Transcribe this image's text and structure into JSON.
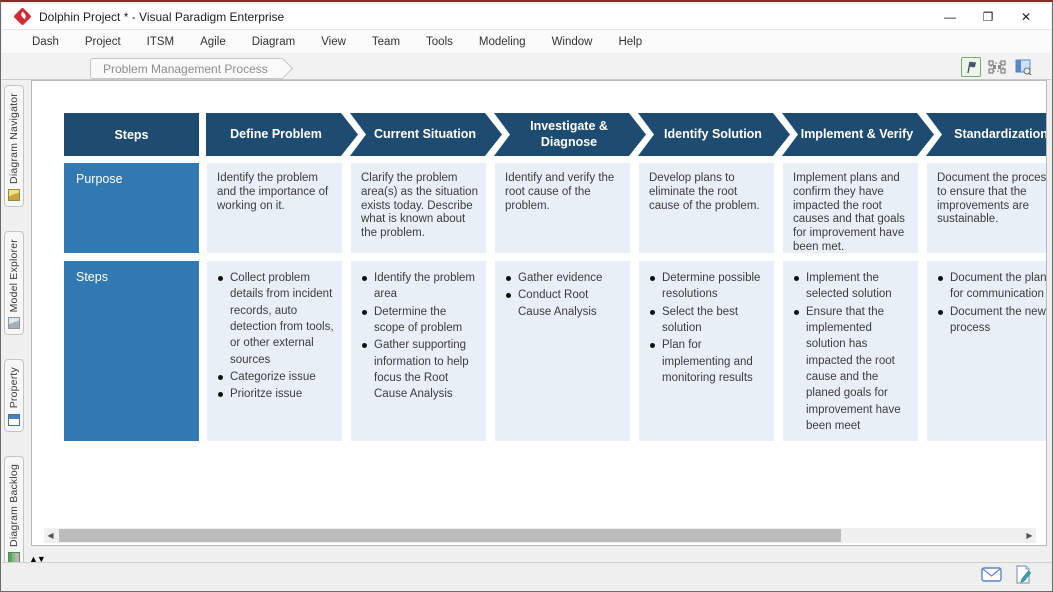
{
  "window": {
    "title": "Dolphin Project * - Visual Paradigm Enterprise",
    "controls": {
      "minimize": "—",
      "maximize": "❐",
      "close": "✕"
    }
  },
  "menu": {
    "items": [
      "Dash",
      "Project",
      "ITSM",
      "Agile",
      "Diagram",
      "View",
      "Team",
      "Tools",
      "Modeling",
      "Window",
      "Help"
    ]
  },
  "breadcrumb": {
    "tab": "Problem Management Process"
  },
  "crumb_toolbar": {
    "icons": [
      "publish-flag-icon",
      "fit-selection-icon",
      "panel-layout-icon"
    ]
  },
  "sidebar": {
    "tabs": [
      {
        "label": "Diagram Navigator",
        "icon": "diagram-navigator-icon"
      },
      {
        "label": "Model Explorer",
        "icon": "model-explorer-icon"
      },
      {
        "label": "Property",
        "icon": "property-icon"
      },
      {
        "label": "Diagram Backlog",
        "icon": "diagram-backlog-icon"
      }
    ]
  },
  "diagram": {
    "row_labels": {
      "header": "Steps",
      "purpose": "Purpose",
      "steps": "Steps"
    },
    "colors": {
      "header_bg": "#1e4c70",
      "row_label_bg": "#3179b0",
      "cell_bg": "#e9eff7"
    },
    "columns": [
      {
        "header": "Define Problem",
        "purpose": "Identify the problem and the importance of working on it.",
        "steps": [
          "Collect problem details from incident records, auto detection from tools, or other external sources",
          "Categorize issue",
          "Prioritze issue"
        ]
      },
      {
        "header": "Current Situation",
        "purpose": "Clarify the problem area(s) as the situation exists today. Describe what is known about the problem.",
        "steps": [
          "Identify the problem area",
          "Determine the scope of problem",
          "Gather supporting information to help focus the Root Cause Analysis"
        ]
      },
      {
        "header": "Investigate & Diagnose",
        "purpose": "Identify and verify the root cause of the problem.",
        "steps": [
          "Gather evidence",
          "Conduct Root Cause Analysis"
        ]
      },
      {
        "header": "Identify Solution",
        "purpose": "Develop plans to eliminate the root cause of the problem.",
        "steps": [
          "Determine possible resolutions",
          "Select the best solution",
          "Plan for implementing and monitoring results"
        ]
      },
      {
        "header": "Implement & Verify",
        "purpose": "Implement plans and confirm they have impacted the root causes and that goals for improvement have been met.",
        "steps": [
          "Implement the selected solution",
          "Ensure that the implemented solution has impacted the root cause and the planed goals for improvement have been meet"
        ]
      },
      {
        "header": "Standardization",
        "purpose": "Document the process to ensure that the improvements are sustainable.",
        "steps": [
          "Document the plan for communication",
          "Document the new process"
        ]
      }
    ]
  },
  "statusbar": {
    "icons": [
      "mail-icon",
      "edit-document-icon"
    ]
  }
}
